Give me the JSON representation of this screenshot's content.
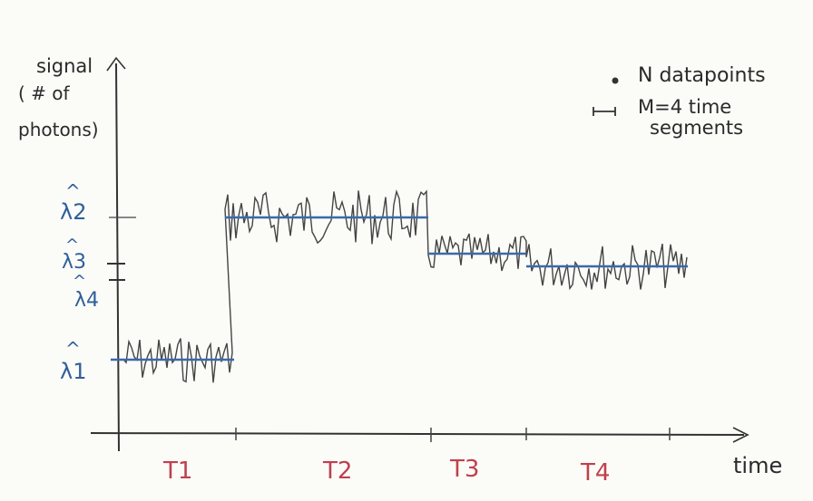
{
  "axes": {
    "y_label_line1": "signal",
    "y_label_line2": "( # of",
    "y_label_line3": "photons)",
    "x_label": "time"
  },
  "legend": {
    "points_label": "N datapoints",
    "segments_line1": "M=4 time",
    "segments_line2": "segments"
  },
  "levels": [
    {
      "label": "λ2",
      "value": 240
    },
    {
      "label": "λ3",
      "value": 280
    },
    {
      "label": "λ4",
      "value": 294
    },
    {
      "label": "λ1",
      "value": 397
    }
  ],
  "segments": [
    {
      "label": "T1",
      "level_index": 3
    },
    {
      "label": "T2",
      "level_index": 0
    },
    {
      "label": "T3",
      "level_index": 1
    },
    {
      "label": "T4",
      "level_index": 2
    }
  ],
  "colors": {
    "ink": "#2a2a2a",
    "fit_line": "#3a6aa8",
    "level_labels": "#2f5f9a",
    "segment_labels": "#c0404c",
    "signal_trace": "#444444"
  }
}
